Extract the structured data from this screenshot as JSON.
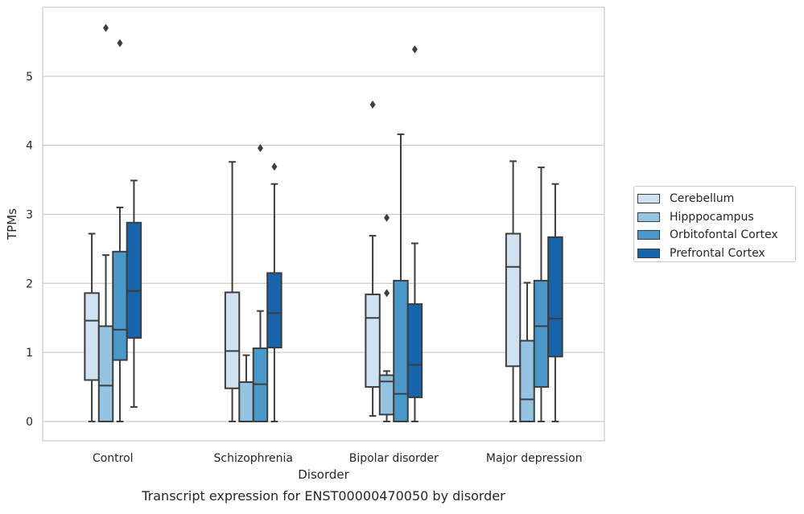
{
  "chart_data": {
    "type": "box",
    "title": "Transcript expression for ENST00000470050 by disorder",
    "xlabel": "Disorder",
    "ylabel": "TPMs",
    "ylim": [
      -0.28,
      6.0
    ],
    "yticks": [
      0,
      1,
      2,
      3,
      4,
      5
    ],
    "grid": "horizontal",
    "legend_position": "right",
    "categories": [
      "Control",
      "Schizophrenia",
      "Bipolar disorder",
      "Major depression"
    ],
    "series": [
      {
        "name": "Cerebellum",
        "color": "#d0e1f2",
        "boxes": [
          {
            "whisker_low": 0,
            "q1": 0.6,
            "median": 1.46,
            "q3": 1.86,
            "whisker_high": 2.72,
            "outliers": []
          },
          {
            "whisker_low": 0,
            "q1": 0.48,
            "median": 1.02,
            "q3": 1.87,
            "whisker_high": 3.76,
            "outliers": []
          },
          {
            "whisker_low": 0.08,
            "q1": 0.5,
            "median": 1.5,
            "q3": 1.84,
            "whisker_high": 2.69,
            "outliers": [
              4.59
            ]
          },
          {
            "whisker_low": 0,
            "q1": 0.8,
            "median": 2.24,
            "q3": 2.72,
            "whisker_high": 3.77,
            "outliers": []
          }
        ]
      },
      {
        "name": "Hipppocampus",
        "color": "#94c4df",
        "boxes": [
          {
            "whisker_low": 0,
            "q1": 0,
            "median": 0.52,
            "q3": 1.38,
            "whisker_high": 2.41,
            "outliers": [
              5.7
            ]
          },
          {
            "whisker_low": 0,
            "q1": 0,
            "median": 0,
            "q3": 0.57,
            "whisker_high": 0.96,
            "outliers": []
          },
          {
            "whisker_low": 0,
            "q1": 0.1,
            "median": 0.58,
            "q3": 0.67,
            "whisker_high": 0.73,
            "outliers": [
              1.86,
              2.95
            ]
          },
          {
            "whisker_low": 0,
            "q1": 0,
            "median": 0.32,
            "q3": 1.17,
            "whisker_high": 2.01,
            "outliers": []
          }
        ]
      },
      {
        "name": "Orbitofontal Cortex",
        "color": "#4a98c9",
        "boxes": [
          {
            "whisker_low": 0,
            "q1": 0.89,
            "median": 1.33,
            "q3": 2.46,
            "whisker_high": 3.1,
            "outliers": [
              5.48
            ]
          },
          {
            "whisker_low": 0,
            "q1": 0,
            "median": 0.54,
            "q3": 1.06,
            "whisker_high": 1.6,
            "outliers": [
              3.96
            ]
          },
          {
            "whisker_low": 0,
            "q1": 0,
            "median": 0.4,
            "q3": 2.04,
            "whisker_high": 4.16,
            "outliers": []
          },
          {
            "whisker_low": 0,
            "q1": 0.5,
            "median": 1.38,
            "q3": 2.04,
            "whisker_high": 3.68,
            "outliers": []
          }
        ]
      },
      {
        "name": "Prefrontal Cortex",
        "color": "#1764ab",
        "boxes": [
          {
            "whisker_low": 0.21,
            "q1": 1.21,
            "median": 1.89,
            "q3": 2.88,
            "whisker_high": 3.49,
            "outliers": []
          },
          {
            "whisker_low": 0,
            "q1": 1.07,
            "median": 1.57,
            "q3": 2.15,
            "whisker_high": 3.44,
            "outliers": [
              3.69
            ]
          },
          {
            "whisker_low": 0,
            "q1": 0.35,
            "median": 0.82,
            "q3": 1.7,
            "whisker_high": 2.58,
            "outliers": [
              5.39
            ]
          },
          {
            "whisker_low": 0,
            "q1": 0.94,
            "median": 1.49,
            "q3": 2.67,
            "whisker_high": 3.44,
            "outliers": []
          }
        ]
      }
    ]
  }
}
